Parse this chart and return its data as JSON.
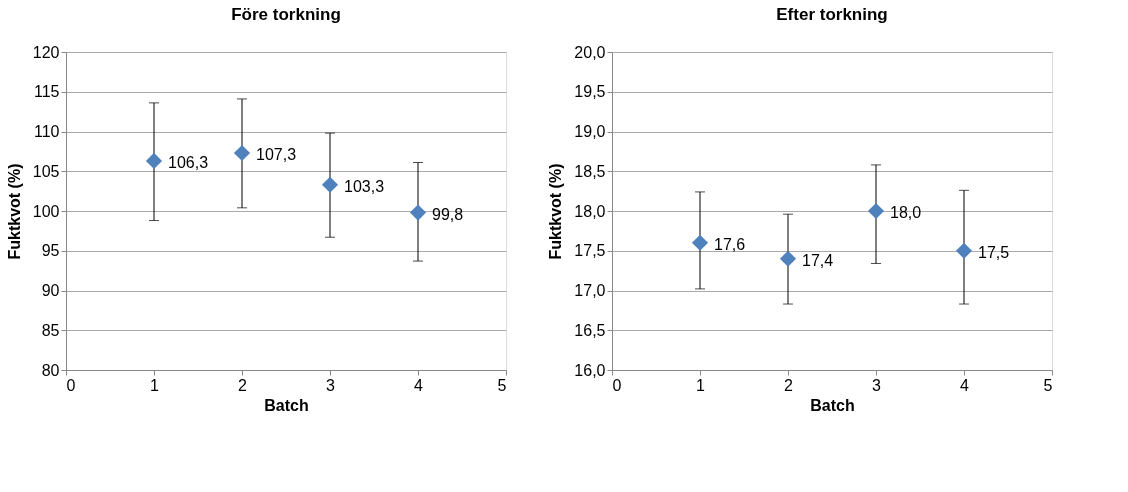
{
  "chart_data": [
    {
      "type": "scatter",
      "title": "Före torkning",
      "xlabel": "Batch",
      "ylabel": "Fuktkvot (%)",
      "x": [
        1,
        2,
        3,
        4
      ],
      "values": [
        106.3,
        107.3,
        103.3,
        99.8
      ],
      "value_labels": [
        "106,3",
        "107,3",
        "103,3",
        "99,8"
      ],
      "errors": [
        [
          98.8,
          113.6
        ],
        [
          100.4,
          114.1
        ],
        [
          96.7,
          109.8
        ],
        [
          93.7,
          106.1
        ]
      ],
      "color": "#4f81bd",
      "marker": "diamond",
      "xlim": [
        0,
        5
      ],
      "xticks": [
        0,
        1,
        2,
        3,
        4,
        5
      ],
      "ylim": [
        80,
        120
      ],
      "yticks": [
        80,
        85,
        90,
        95,
        100,
        105,
        110,
        115,
        120
      ],
      "grid": "y"
    },
    {
      "type": "scatter",
      "title": "Efter torkning",
      "xlabel": "Batch",
      "ylabel": "Fuktkvot (%)",
      "x": [
        1,
        2,
        3,
        4
      ],
      "values": [
        17.6,
        17.4,
        18.0,
        17.5
      ],
      "value_labels": [
        "17,6",
        "17,4",
        "18,0",
        "17,5"
      ],
      "errors": [
        [
          17.02,
          18.24
        ],
        [
          16.83,
          17.96
        ],
        [
          17.34,
          18.58
        ],
        [
          16.83,
          18.26
        ]
      ],
      "color": "#4f81bd",
      "marker": "diamond",
      "xlim": [
        0,
        5
      ],
      "xticks": [
        0,
        1,
        2,
        3,
        4,
        5
      ],
      "ylim": [
        16,
        20
      ],
      "yticks": [
        {
          "value": 16,
          "label": "16,0"
        },
        {
          "value": 16.5,
          "label": "16,5"
        },
        {
          "value": 17,
          "label": "17,0"
        },
        {
          "value": 17.5,
          "label": "17,5"
        },
        {
          "value": 18,
          "label": "18,0"
        },
        {
          "value": 18.5,
          "label": "18,5"
        },
        {
          "value": 19,
          "label": "19,0"
        },
        {
          "value": 19.5,
          "label": "19,5"
        },
        {
          "value": 20,
          "label": "20,0"
        }
      ],
      "grid": "y"
    }
  ]
}
